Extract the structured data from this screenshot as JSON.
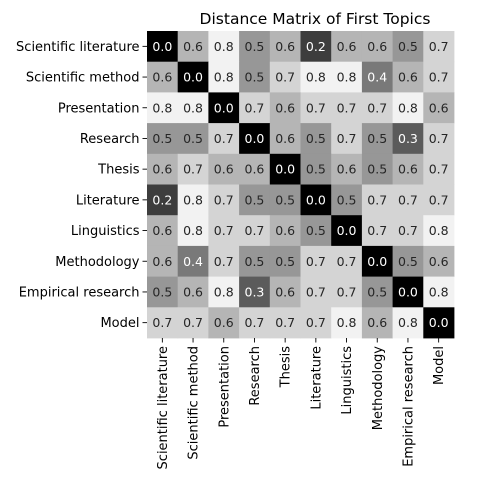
{
  "chart_data": {
    "type": "heatmap",
    "title": "Distance Matrix of First Topics",
    "xlabel": "",
    "ylabel": "",
    "labels": [
      "Scientific literature",
      "Scientific method",
      "Presentation",
      "Research",
      "Thesis",
      "Literature",
      "Linguistics",
      "Methodology",
      "Empirical research",
      "Model"
    ],
    "matrix": [
      [
        0.0,
        0.6,
        0.8,
        0.5,
        0.6,
        0.2,
        0.6,
        0.6,
        0.5,
        0.7
      ],
      [
        0.6,
        0.0,
        0.8,
        0.5,
        0.7,
        0.8,
        0.8,
        0.4,
        0.6,
        0.7
      ],
      [
        0.8,
        0.8,
        0.0,
        0.7,
        0.6,
        0.7,
        0.7,
        0.7,
        0.8,
        0.6
      ],
      [
        0.5,
        0.5,
        0.7,
        0.0,
        0.6,
        0.5,
        0.7,
        0.5,
        0.3,
        0.7
      ],
      [
        0.6,
        0.7,
        0.6,
        0.6,
        0.0,
        0.5,
        0.6,
        0.5,
        0.6,
        0.7
      ],
      [
        0.2,
        0.8,
        0.7,
        0.5,
        0.5,
        0.0,
        0.5,
        0.7,
        0.7,
        0.7
      ],
      [
        0.6,
        0.8,
        0.7,
        0.7,
        0.6,
        0.5,
        0.0,
        0.7,
        0.7,
        0.8
      ],
      [
        0.6,
        0.4,
        0.7,
        0.5,
        0.5,
        0.7,
        0.7,
        0.0,
        0.5,
        0.6
      ],
      [
        0.5,
        0.6,
        0.8,
        0.3,
        0.6,
        0.7,
        0.7,
        0.5,
        0.0,
        0.8
      ],
      [
        0.7,
        0.7,
        0.6,
        0.7,
        0.7,
        0.7,
        0.8,
        0.6,
        0.8,
        0.0
      ]
    ],
    "colormap": "greys-reversed",
    "value_range": [
      0.0,
      0.8
    ],
    "value_format": "1 decimal",
    "grid": false,
    "legend": "none"
  }
}
